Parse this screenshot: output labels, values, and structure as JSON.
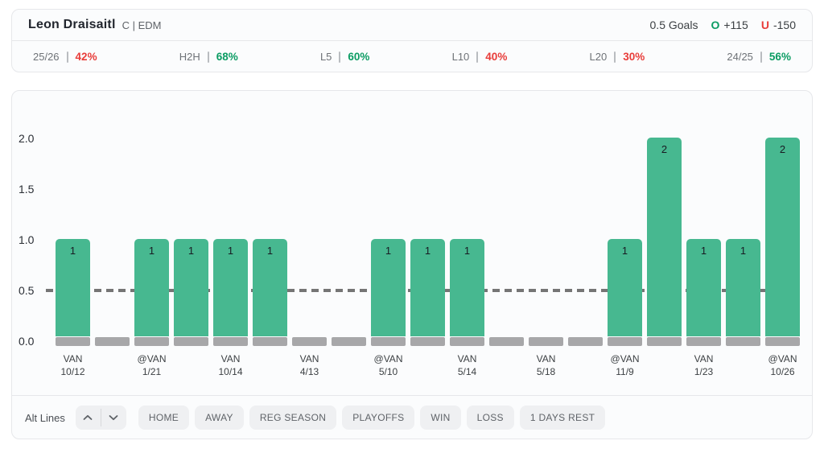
{
  "header": {
    "player_name": "Leon Draisaitl",
    "position_team": "C | EDM",
    "line_label": "0.5 Goals",
    "over_letter": "O",
    "over_odds": "+115",
    "under_letter": "U",
    "under_odds": "-150"
  },
  "colors": {
    "pct_green": "#0b9c63",
    "pct_red": "#e83c39",
    "bar_green": "#47b890",
    "bar_gray": "#a7a7a9",
    "dash_gray": "#757575"
  },
  "stats": [
    {
      "label": "25/26",
      "value": "42%",
      "color": "red"
    },
    {
      "label": "H2H",
      "value": "68%",
      "color": "green"
    },
    {
      "label": "L5",
      "value": "60%",
      "color": "green"
    },
    {
      "label": "L10",
      "value": "40%",
      "color": "red"
    },
    {
      "label": "L20",
      "value": "30%",
      "color": "red"
    },
    {
      "label": "24/25",
      "value": "56%",
      "color": "green"
    }
  ],
  "chart_data": {
    "type": "bar",
    "title": "",
    "xlabel": "",
    "ylabel": "",
    "ylim": [
      0,
      2.25
    ],
    "yticks": [
      0.0,
      0.5,
      1.0,
      1.5,
      2.0
    ],
    "reference_line": 0.5,
    "grid": false,
    "bars": [
      {
        "value": 1,
        "opponent": "VAN",
        "date": "10/12"
      },
      {
        "value": 0
      },
      {
        "value": 1,
        "opponent": "@VAN",
        "date": "1/21"
      },
      {
        "value": 1
      },
      {
        "value": 1,
        "opponent": "VAN",
        "date": "10/14"
      },
      {
        "value": 1
      },
      {
        "value": 0,
        "opponent": "VAN",
        "date": "4/13"
      },
      {
        "value": 0
      },
      {
        "value": 1,
        "opponent": "@VAN",
        "date": "5/10"
      },
      {
        "value": 1
      },
      {
        "value": 1,
        "opponent": "VAN",
        "date": "5/14"
      },
      {
        "value": 0
      },
      {
        "value": 0,
        "opponent": "VAN",
        "date": "5/18"
      },
      {
        "value": 0
      },
      {
        "value": 1,
        "opponent": "@VAN",
        "date": "11/9"
      },
      {
        "value": 2
      },
      {
        "value": 1,
        "opponent": "VAN",
        "date": "1/23"
      },
      {
        "value": 1
      },
      {
        "value": 2,
        "opponent": "@VAN",
        "date": "10/26"
      }
    ]
  },
  "filters": {
    "alt_lines_label": "Alt Lines",
    "buttons": [
      "HOME",
      "AWAY",
      "REG SEASON",
      "PLAYOFFS",
      "WIN",
      "LOSS",
      "1 DAYS REST"
    ]
  }
}
